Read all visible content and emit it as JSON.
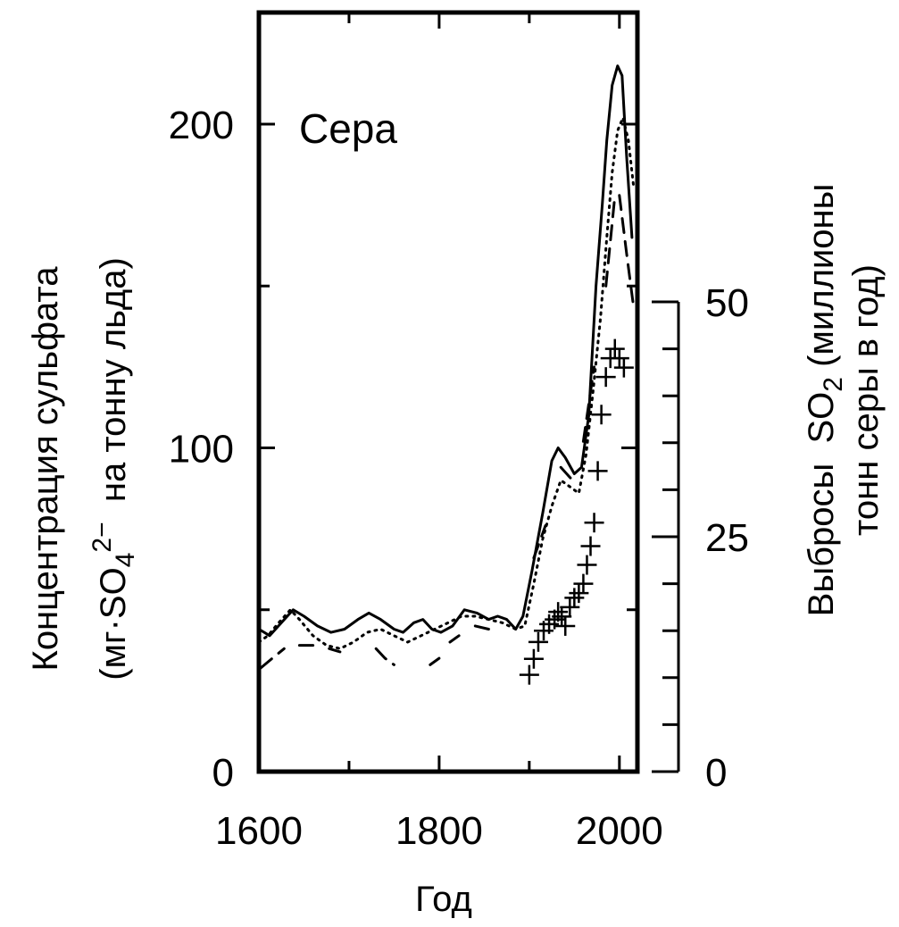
{
  "chart_data": {
    "type": "line",
    "title": "Сера",
    "xlabel": "Год",
    "ylabel_parts": [
      "Концентрация сульфата",
      "(мг·SO",
      "4",
      "2−",
      "  на тонну льда)"
    ],
    "y2label_parts": [
      "Выбросы  SO",
      "2",
      " (миллионы",
      "тонн серы в год)"
    ],
    "xlim": [
      1600,
      2020
    ],
    "ylim": [
      0,
      220
    ],
    "y2lim": [
      0,
      50
    ],
    "x_ticks": [
      1600,
      1800,
      2000
    ],
    "y_ticks": [
      0,
      100,
      200
    ],
    "y2_ticks": [
      0,
      25,
      50
    ],
    "grid": false,
    "series": [
      {
        "style": "solid",
        "x": [
          1600,
          1612,
          1625,
          1638,
          1650,
          1665,
          1680,
          1695,
          1710,
          1722,
          1735,
          1750,
          1760,
          1772,
          1782,
          1792,
          1802,
          1815,
          1828,
          1842,
          1855,
          1865,
          1875,
          1885,
          1893,
          1903,
          1915,
          1925,
          1932,
          1940,
          1950,
          1958,
          1966,
          1974,
          1981,
          1986,
          1992,
          1998,
          2003,
          2008,
          2014
        ],
        "y": [
          44,
          42,
          46,
          50,
          48,
          45,
          43,
          44,
          47,
          49,
          47,
          44,
          43,
          46,
          47,
          44,
          43,
          45,
          50,
          49,
          47,
          48,
          47,
          44,
          48,
          62,
          80,
          96,
          100,
          97,
          92,
          94,
          110,
          150,
          175,
          195,
          212,
          218,
          215,
          190,
          165
        ]
      },
      {
        "style": "dotted",
        "x": [
          1600,
          1610,
          1622,
          1635,
          1645,
          1660,
          1675,
          1690,
          1705,
          1720,
          1735,
          1750,
          1765,
          1780,
          1795,
          1810,
          1825,
          1840,
          1855,
          1870,
          1885,
          1895,
          1905,
          1915,
          1925,
          1935,
          1945,
          1955,
          1963,
          1971,
          1979,
          1986,
          1992,
          1998,
          2004,
          2010,
          2016
        ],
        "y": [
          40,
          42,
          46,
          50,
          47,
          42,
          39,
          38,
          40,
          43,
          44,
          42,
          40,
          42,
          44,
          46,
          48,
          48,
          47,
          46,
          44,
          45,
          58,
          72,
          82,
          90,
          88,
          86,
          98,
          118,
          140,
          165,
          185,
          198,
          202,
          195,
          180
        ]
      },
      {
        "style": "dashed",
        "segments": [
          {
            "x": [
              1602,
              1615,
              1628
            ],
            "y": [
              32,
              35,
              38
            ]
          },
          {
            "x": [
              1645,
              1660
            ],
            "y": [
              39,
              39
            ]
          },
          {
            "x": [
              1678,
              1690
            ],
            "y": [
              38,
              37
            ]
          },
          {
            "x": [
              1730,
              1740,
              1750
            ],
            "y": [
              38,
              35,
              33
            ]
          },
          {
            "x": [
              1790,
              1800
            ],
            "y": [
              33,
              35
            ]
          },
          {
            "x": [
              1812,
              1822
            ],
            "y": [
              40,
              42
            ]
          },
          {
            "x": [
              1840,
              1855
            ],
            "y": [
              45,
              44
            ]
          },
          {
            "x": [
              1905,
              1918
            ],
            "y": [
              66,
              76
            ]
          },
          {
            "x": [
              1935,
              1948
            ],
            "y": [
              94,
              90
            ]
          },
          {
            "x": [
              1960,
              1972
            ],
            "y": [
              102,
              125
            ]
          },
          {
            "x": [
              1985,
              1995
            ],
            "y": [
              150,
              178
            ]
          },
          {
            "x": [
              2000,
              2008,
              2015
            ],
            "y": [
              178,
              160,
              145
            ]
          }
        ]
      }
    ],
    "emissions_points": {
      "marker": "+",
      "axis": "y2",
      "x": [
        1900,
        1905,
        1910,
        1916,
        1922,
        1928,
        1932,
        1936,
        1940,
        1945,
        1950,
        1955,
        1960,
        1964,
        1968,
        1972,
        1976,
        1980,
        1985,
        1990,
        1995,
        2000,
        2005
      ],
      "y": [
        10.3,
        12,
        13.8,
        15,
        15.7,
        16.2,
        17,
        16.5,
        15.5,
        17.5,
        18.5,
        19,
        20,
        22,
        24,
        26.5,
        32,
        38,
        42,
        44,
        45,
        44,
        43
      ]
    }
  }
}
